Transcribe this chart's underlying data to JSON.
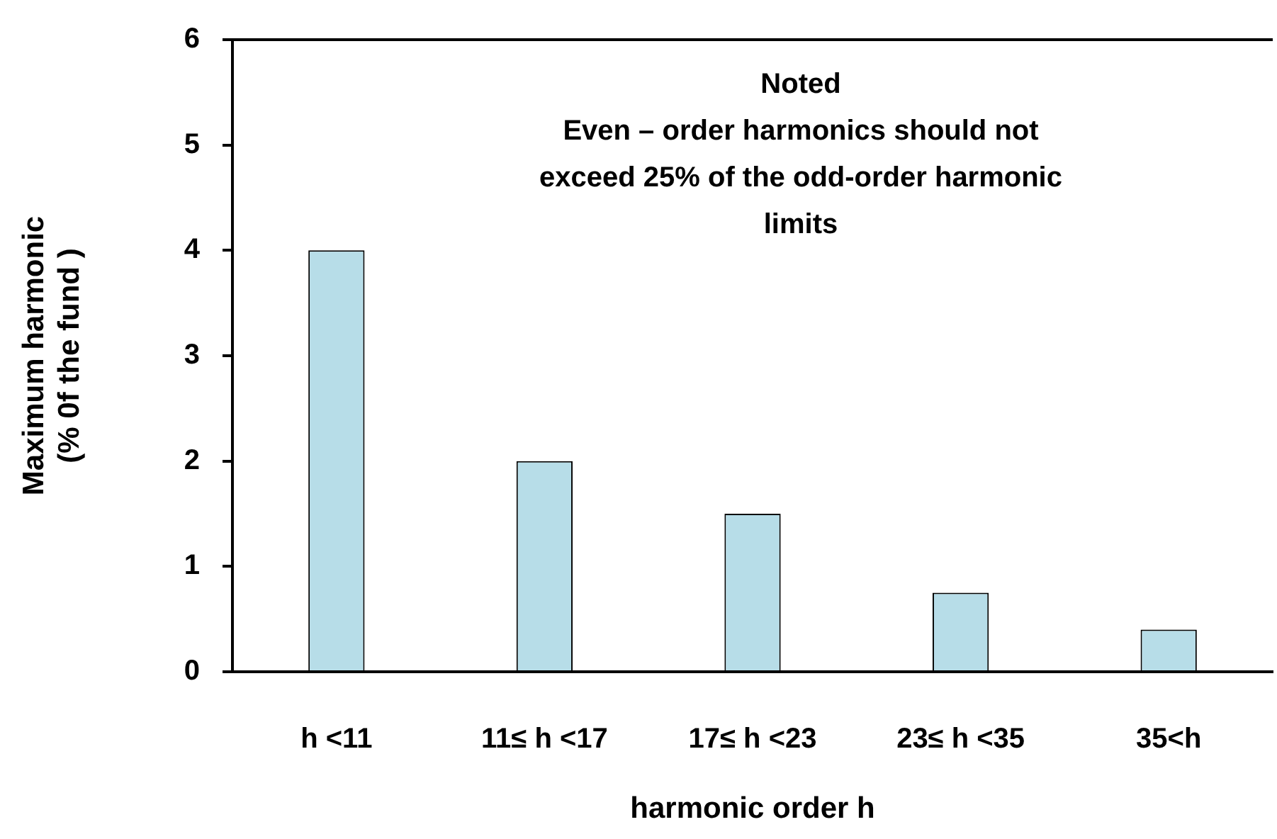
{
  "chart_data": {
    "type": "bar",
    "xlabel": "harmonic order h",
    "ylabel": "Maximum harmonic\n(% 0f the fund )",
    "categories": [
      "h <11",
      "11≤ h <17",
      "17≤ h <23",
      "23≤ h <35",
      "35<h"
    ],
    "values": [
      4,
      2,
      1.5,
      0.75,
      0.4
    ],
    "color": "#b7dde8",
    "ylim": [
      0,
      6
    ],
    "yticks": [
      0,
      1,
      2,
      3,
      4,
      5,
      6
    ],
    "grid": false,
    "legend": false,
    "annotations": [
      "Noted",
      "Even – order harmonics should not exceed 25% of the odd-order harmonic limits"
    ]
  }
}
